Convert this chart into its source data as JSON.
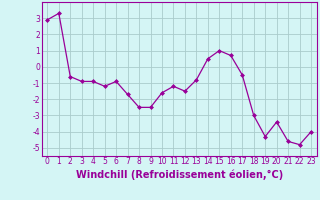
{
  "x": [
    0,
    1,
    2,
    3,
    4,
    5,
    6,
    7,
    8,
    9,
    10,
    11,
    12,
    13,
    14,
    15,
    16,
    17,
    18,
    19,
    20,
    21,
    22,
    23
  ],
  "y": [
    2.9,
    3.3,
    -0.6,
    -0.9,
    -0.9,
    -1.2,
    -0.9,
    -1.7,
    -2.5,
    -2.5,
    -1.6,
    -1.2,
    -1.5,
    -0.8,
    0.5,
    1.0,
    0.7,
    -0.5,
    -3.0,
    -4.3,
    -3.4,
    -4.6,
    -4.8,
    -4.0
  ],
  "line_color": "#990099",
  "marker": "D",
  "marker_size": 2.0,
  "bg_color": "#d4f5f5",
  "grid_color": "#aacccc",
  "xlabel": "Windchill (Refroidissement éolien,°C)",
  "xlim": [
    -0.5,
    23.5
  ],
  "ylim": [
    -5.5,
    4.0
  ],
  "yticks": [
    -5,
    -4,
    -3,
    -2,
    -1,
    0,
    1,
    2,
    3
  ],
  "xticks": [
    0,
    1,
    2,
    3,
    4,
    5,
    6,
    7,
    8,
    9,
    10,
    11,
    12,
    13,
    14,
    15,
    16,
    17,
    18,
    19,
    20,
    21,
    22,
    23
  ],
  "tick_fontsize": 5.5,
  "xlabel_fontsize": 7.0
}
